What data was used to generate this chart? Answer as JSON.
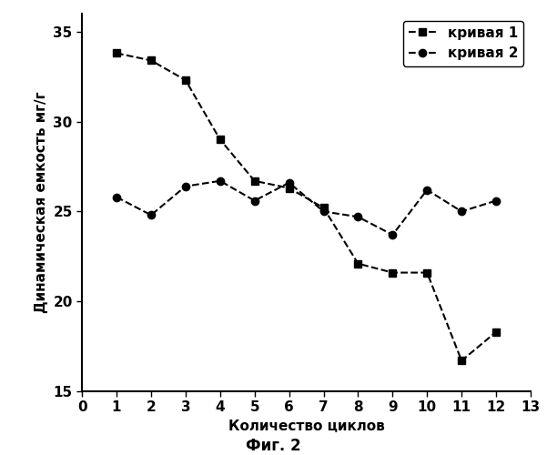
{
  "curve1_x": [
    1,
    2,
    3,
    4,
    5,
    6,
    7,
    8,
    9,
    10,
    11,
    12
  ],
  "curve1_y": [
    33.8,
    33.4,
    32.3,
    29.0,
    26.7,
    26.3,
    25.2,
    22.1,
    21.6,
    21.6,
    16.7,
    18.3
  ],
  "curve2_x": [
    1,
    2,
    3,
    4,
    5,
    6,
    7,
    8,
    9,
    10,
    11,
    12
  ],
  "curve2_y": [
    25.8,
    24.8,
    26.4,
    26.7,
    25.6,
    26.6,
    25.0,
    24.7,
    23.7,
    26.2,
    25.0,
    25.6
  ],
  "xlabel": "Количество циклов",
  "ylabel": "Динамическая емкость мг/г",
  "caption": "Фиг. 2",
  "legend1": "кривая 1",
  "legend2": "кривая 2",
  "xlim": [
    0,
    13
  ],
  "ylim": [
    15,
    36
  ],
  "yticks": [
    15,
    20,
    25,
    30,
    35
  ],
  "xticks": [
    0,
    1,
    2,
    3,
    4,
    5,
    6,
    7,
    8,
    9,
    10,
    11,
    12,
    13
  ],
  "line_color": "#000000",
  "bg_color": "#ffffff",
  "caption_fontsize": 12,
  "label_fontsize": 11,
  "legend_fontsize": 11,
  "tick_fontsize": 11
}
